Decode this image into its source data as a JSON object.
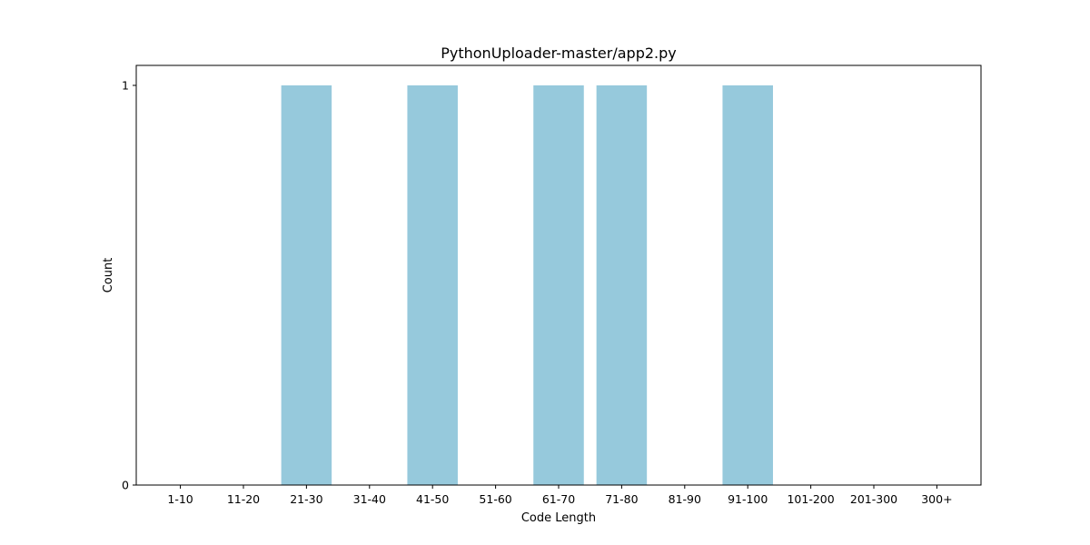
{
  "chart_data": {
    "type": "bar",
    "title": "PythonUploader-master/app2.py",
    "xlabel": "Code Length",
    "ylabel": "Count",
    "categories": [
      "1-10",
      "11-20",
      "21-30",
      "31-40",
      "41-50",
      "51-60",
      "61-70",
      "71-80",
      "81-90",
      "91-100",
      "101-200",
      "201-300",
      "300+"
    ],
    "values": [
      0,
      0,
      1,
      0,
      1,
      0,
      1,
      1,
      0,
      1,
      0,
      0,
      0
    ],
    "ylim": [
      0,
      1.05
    ],
    "yticks": [
      "0",
      "1"
    ],
    "bar_color": "#96c9dc",
    "grid": false,
    "legend": "none"
  }
}
